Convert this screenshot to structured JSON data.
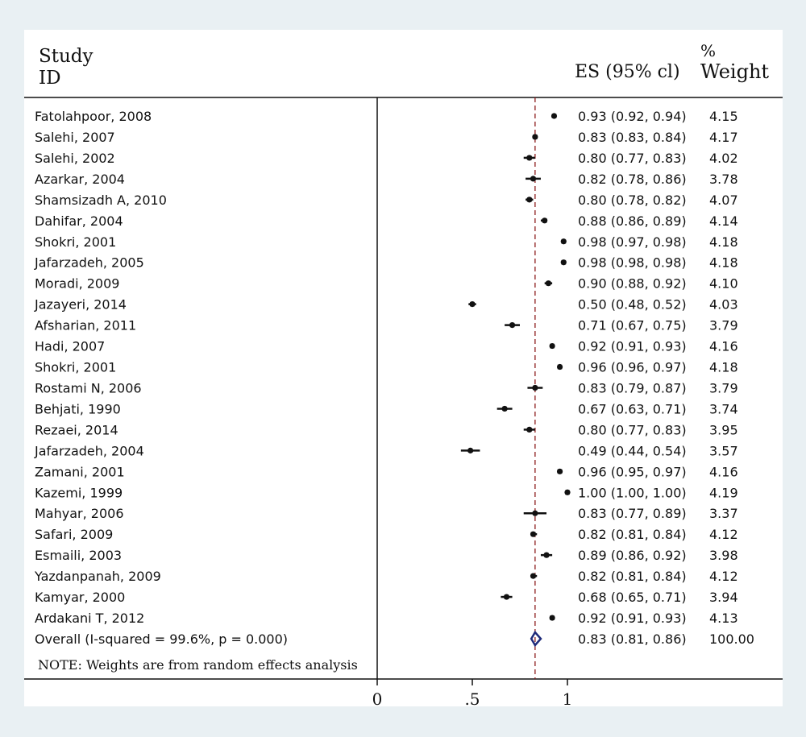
{
  "header": {
    "study_line1": "Study",
    "study_line2": "ID",
    "es_label": "ES (95% cl)",
    "weight_line1": "%",
    "weight_line2": "Weight"
  },
  "note": "NOTE: Weights are from random effects analysis",
  "colors": {
    "background": "#e9f0f3",
    "panel": "#ffffff",
    "marker": "#111111",
    "weight_box": "#9a9a9a",
    "reference_line": "#8b1a1a",
    "diamond": "#1f2a7a"
  },
  "chart_data": {
    "type": "forest",
    "xlabel": "",
    "xlim": [
      0,
      1.12
    ],
    "x_ticks": [
      {
        "value": 0,
        "label": "0"
      },
      {
        "value": 0.5,
        "label": ".5"
      },
      {
        "value": 1,
        "label": "1"
      }
    ],
    "overall_line": 0.83,
    "studies": [
      {
        "id": "Fatolahpoor, 2008",
        "es": 0.93,
        "lo": 0.92,
        "hi": 0.94,
        "es_text": "0.93 (0.92, 0.94)",
        "weight": "4.15"
      },
      {
        "id": "Salehi, 2007",
        "es": 0.83,
        "lo": 0.83,
        "hi": 0.84,
        "es_text": "0.83 (0.83, 0.84)",
        "weight": "4.17"
      },
      {
        "id": "Salehi, 2002",
        "es": 0.8,
        "lo": 0.77,
        "hi": 0.83,
        "es_text": "0.80 (0.77, 0.83)",
        "weight": "4.02"
      },
      {
        "id": "Azarkar, 2004",
        "es": 0.82,
        "lo": 0.78,
        "hi": 0.86,
        "es_text": "0.82 (0.78, 0.86)",
        "weight": "3.78"
      },
      {
        "id": "Shamsizadh A, 2010",
        "es": 0.8,
        "lo": 0.78,
        "hi": 0.82,
        "es_text": "0.80 (0.78, 0.82)",
        "weight": "4.07"
      },
      {
        "id": "Dahifar, 2004",
        "es": 0.88,
        "lo": 0.86,
        "hi": 0.89,
        "es_text": "0.88 (0.86, 0.89)",
        "weight": "4.14"
      },
      {
        "id": "Shokri, 2001",
        "es": 0.98,
        "lo": 0.97,
        "hi": 0.98,
        "es_text": "0.98 (0.97, 0.98)",
        "weight": "4.18"
      },
      {
        "id": "Jafarzadeh, 2005",
        "es": 0.98,
        "lo": 0.98,
        "hi": 0.98,
        "es_text": "0.98 (0.98, 0.98)",
        "weight": "4.18"
      },
      {
        "id": "Moradi, 2009",
        "es": 0.9,
        "lo": 0.88,
        "hi": 0.92,
        "es_text": "0.90 (0.88, 0.92)",
        "weight": "4.10"
      },
      {
        "id": "Jazayeri, 2014",
        "es": 0.5,
        "lo": 0.48,
        "hi": 0.52,
        "es_text": "0.50 (0.48, 0.52)",
        "weight": "4.03"
      },
      {
        "id": "Afsharian, 2011",
        "es": 0.71,
        "lo": 0.67,
        "hi": 0.75,
        "es_text": "0.71 (0.67, 0.75)",
        "weight": "3.79"
      },
      {
        "id": "Hadi, 2007",
        "es": 0.92,
        "lo": 0.91,
        "hi": 0.93,
        "es_text": "0.92 (0.91, 0.93)",
        "weight": "4.16"
      },
      {
        "id": "Shokri, 2001",
        "es": 0.96,
        "lo": 0.96,
        "hi": 0.97,
        "es_text": "0.96 (0.96, 0.97)",
        "weight": "4.18"
      },
      {
        "id": "Rostami N, 2006",
        "es": 0.83,
        "lo": 0.79,
        "hi": 0.87,
        "es_text": "0.83 (0.79, 0.87)",
        "weight": "3.79"
      },
      {
        "id": "Behjati, 1990",
        "es": 0.67,
        "lo": 0.63,
        "hi": 0.71,
        "es_text": "0.67 (0.63, 0.71)",
        "weight": "3.74"
      },
      {
        "id": "Rezaei, 2014",
        "es": 0.8,
        "lo": 0.77,
        "hi": 0.83,
        "es_text": "0.80 (0.77, 0.83)",
        "weight": "3.95"
      },
      {
        "id": "Jafarzadeh, 2004",
        "es": 0.49,
        "lo": 0.44,
        "hi": 0.54,
        "es_text": "0.49 (0.44, 0.54)",
        "weight": "3.57"
      },
      {
        "id": "Zamani, 2001",
        "es": 0.96,
        "lo": 0.95,
        "hi": 0.97,
        "es_text": "0.96 (0.95, 0.97)",
        "weight": "4.16"
      },
      {
        "id": "Kazemi, 1999",
        "es": 1.0,
        "lo": 1.0,
        "hi": 1.0,
        "es_text": "1.00 (1.00, 1.00)",
        "weight": "4.19"
      },
      {
        "id": "Mahyar, 2006",
        "es": 0.83,
        "lo": 0.77,
        "hi": 0.89,
        "es_text": "0.83 (0.77, 0.89)",
        "weight": "3.37"
      },
      {
        "id": "Safari, 2009",
        "es": 0.82,
        "lo": 0.81,
        "hi": 0.84,
        "es_text": "0.82 (0.81, 0.84)",
        "weight": "4.12"
      },
      {
        "id": "Esmaili, 2003",
        "es": 0.89,
        "lo": 0.86,
        "hi": 0.92,
        "es_text": "0.89 (0.86, 0.92)",
        "weight": "3.98"
      },
      {
        "id": "Yazdanpanah, 2009",
        "es": 0.82,
        "lo": 0.81,
        "hi": 0.84,
        "es_text": "0.82 (0.81, 0.84)",
        "weight": "4.12"
      },
      {
        "id": "Kamyar, 2000",
        "es": 0.68,
        "lo": 0.65,
        "hi": 0.71,
        "es_text": "0.68 (0.65, 0.71)",
        "weight": "3.94"
      },
      {
        "id": "Ardakani T, 2012",
        "es": 0.92,
        "lo": 0.91,
        "hi": 0.93,
        "es_text": "0.92 (0.91, 0.93)",
        "weight": "4.13"
      }
    ],
    "overall": {
      "id": "Overall  (I-squared = 99.6%, p = 0.000)",
      "es": 0.83,
      "lo": 0.81,
      "hi": 0.86,
      "es_text": "0.83 (0.81, 0.86)",
      "weight": "100.00"
    }
  }
}
